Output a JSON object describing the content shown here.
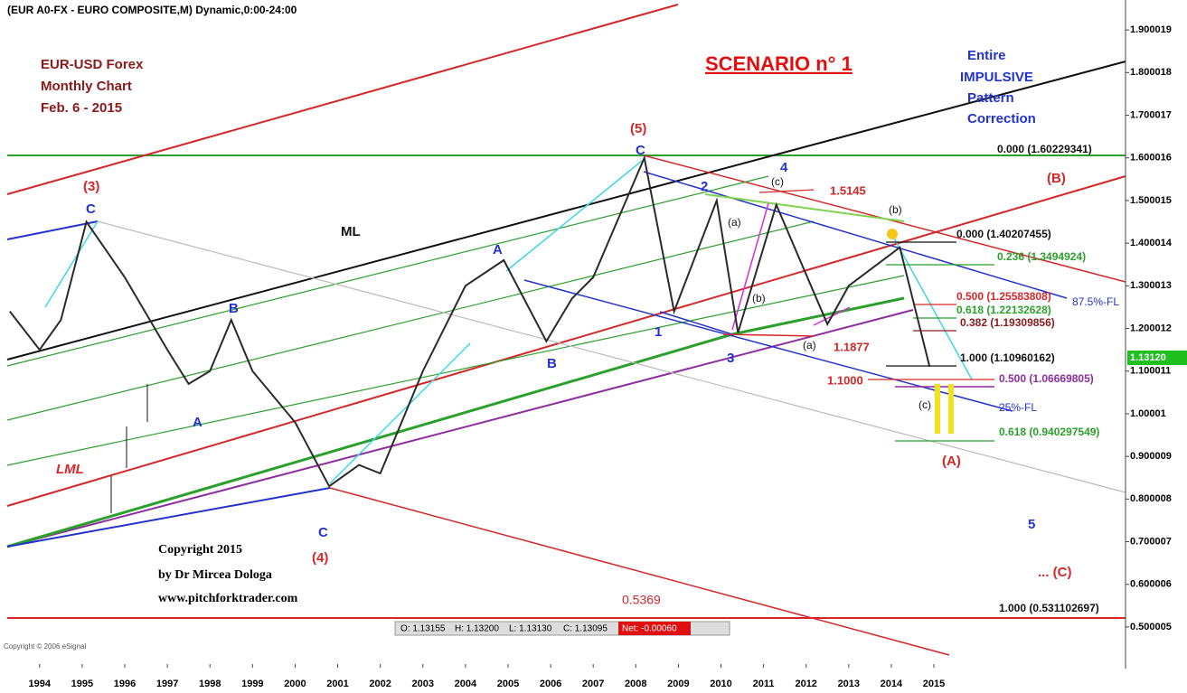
{
  "chart_data": {
    "type": "line",
    "title": "(EUR A0-FX - EURO COMPOSITE,M) Dynamic,0:00-24:00",
    "source": "Copyright © 2006 eSignal",
    "x": [
      1993.3,
      1994,
      1994.5,
      1995.1,
      1996,
      1997,
      1997.5,
      1998,
      1998.5,
      1999,
      2000,
      2000.8,
      2001.5,
      2002,
      2003,
      2004,
      2004.9,
      2005.9,
      2006.5,
      2007,
      2008.2,
      2008.9,
      2009.9,
      2010.4,
      2011.3,
      2012.5,
      2013,
      2014.2,
      2014.9
    ],
    "series": [
      {
        "name": "EUR-USD",
        "color": "#2a2a2a",
        "values": [
          1.24,
          1.15,
          1.22,
          1.45,
          1.32,
          1.15,
          1.07,
          1.1,
          1.22,
          1.1,
          0.98,
          0.83,
          0.88,
          0.86,
          1.1,
          1.3,
          1.36,
          1.17,
          1.27,
          1.32,
          1.6,
          1.24,
          1.5,
          1.19,
          1.49,
          1.21,
          1.3,
          1.39,
          1.11
        ]
      }
    ],
    "xlim": [
      1993.24,
      2019.5
    ],
    "xticks": [
      1994,
      1995,
      1996,
      1997,
      1998,
      1999,
      2000,
      2001,
      2002,
      2003,
      2004,
      2005,
      2006,
      2007,
      2008,
      2009,
      2010,
      2011,
      2012,
      2013,
      2014,
      2015
    ],
    "ylim": [
      0.413,
      1.949
    ],
    "yticks": [
      1.900019,
      1.800018,
      1.700017,
      1.600016,
      1.500015,
      1.400014,
      1.300013,
      1.200012,
      1.100011,
      1.00001,
      0.900009,
      0.800008,
      0.700007,
      0.600006,
      0.500005
    ],
    "last_price": {
      "value": 1.1312,
      "label": "1.13120"
    },
    "status": [
      "O: 1.13155",
      "H: 1.13200",
      "L: 1.13130",
      "C: 1.13095",
      "Net: -0.00060"
    ],
    "annotations": [
      "EUR-USD Forex",
      "Monthly Chart",
      "Feb. 6 - 2015",
      "SCENARIO n° 1",
      "Entire",
      "IMPULSIVE",
      "Pattern",
      "Correction",
      "(3)",
      "C",
      "ML",
      "B",
      "A",
      "LML",
      "C",
      "(4)",
      "A",
      "B",
      "(5)",
      "C",
      "2",
      "(c)",
      "4",
      "1.5145",
      "(a)",
      "(b)",
      "1",
      "3",
      "(a)",
      "1.1877",
      "(b)",
      "1.1000",
      "(c)",
      "(A)",
      "(B)",
      "5",
      "... (C)",
      "0.5369",
      "Copyright 2015",
      "by Dr Mircea Dologa",
      "www.pitchforktrader.com",
      "87.5%-FL",
      "25%-FL",
      "0.000 (1.60229341)",
      "0.000 (1.40207455)",
      "0.236 (1.3494924)",
      "0.500 (1.25583808)",
      "0.618 (1.22132628)",
      "0.382 (1.19309856)",
      "1.000 (1.10960162)",
      "0.500 (1.06669805)",
      "0.618 (0.940297549)",
      "1.000 (0.531102697)"
    ]
  }
}
